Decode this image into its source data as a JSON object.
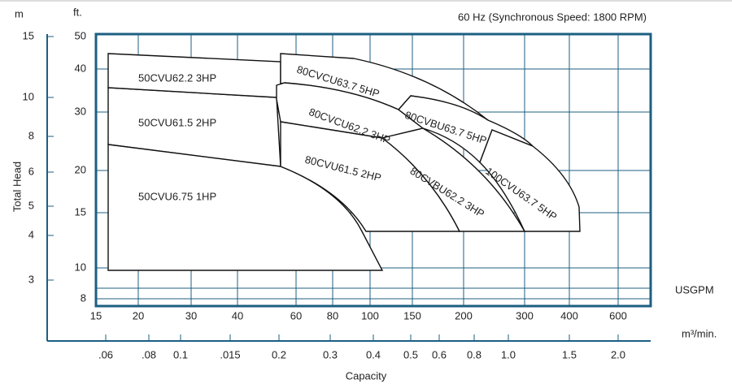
{
  "title": "60 Hz (Synchronous Speed: 1800 RPM)",
  "y_axis_label": "Total Head",
  "x_axis_label": "Capacity",
  "m_unit": "m",
  "ft_unit": "ft.",
  "usgpm_unit": "USGPM",
  "m3_unit": "m³/min.",
  "m_ticks": [
    "15",
    "10",
    "8",
    "6",
    "5",
    "4",
    "3"
  ],
  "ft_ticks": [
    "50",
    "40",
    "30",
    "20",
    "15",
    "10",
    "8"
  ],
  "usgpm_ticks": [
    "15",
    "20",
    "30",
    "40",
    "60",
    "80",
    "100",
    "150",
    "200",
    "300",
    "400",
    "600"
  ],
  "m3_ticks": [
    ".06",
    ".08",
    "0.1",
    ".015",
    "0.2",
    "0.3",
    "0.4",
    "0.5",
    "0.6",
    "0.8",
    "1.0",
    "1.5",
    "2.0"
  ],
  "regions": [
    "50CVU62.2  3HP",
    "50CVU61.5  2HP",
    "50CVU6.75  1HP",
    "80CVCU63.7  5HP",
    "80CVCU62.2  3HP",
    "80CVBU63.7  5HP",
    "80CVU61.5  2HP",
    "80CVBU62.2  3HP",
    "100CVU63.7  5HP"
  ]
}
